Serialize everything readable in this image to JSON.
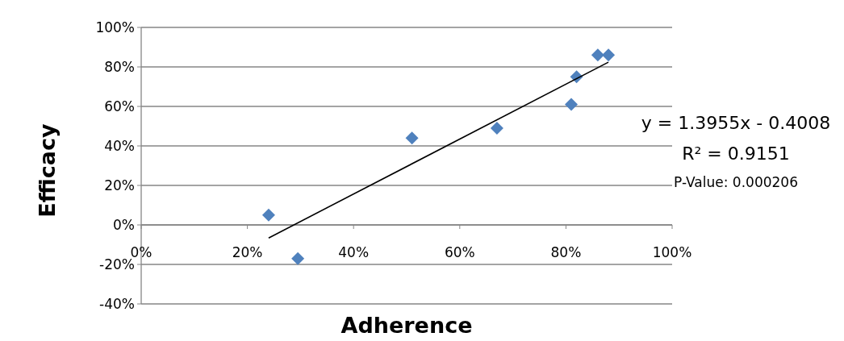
{
  "chart_data": {
    "type": "scatter",
    "xlabel": "Adherence",
    "ylabel": "Efficacy",
    "x": [
      24,
      29.5,
      51,
      67,
      81,
      82,
      86,
      88
    ],
    "series": [
      {
        "color": "#4f81bd",
        "values": [
          5,
          -17,
          44,
          49,
          61,
          75,
          86,
          86
        ],
        "marker": "diamond"
      },
      {
        "type": "line",
        "color": "#000000",
        "x": [
          24,
          88
        ],
        "values": [
          -6.6,
          82.4
        ],
        "marker": "none"
      }
    ],
    "xlim": [
      0,
      100
    ],
    "xticks": [
      {
        "value": 0,
        "label": "0%"
      },
      {
        "value": 20,
        "label": "20%"
      },
      {
        "value": 40,
        "label": "40%"
      },
      {
        "value": 60,
        "label": "60%"
      },
      {
        "value": 80,
        "label": "80%"
      },
      {
        "value": 100,
        "label": "100%"
      }
    ],
    "ylim": [
      -40,
      100
    ],
    "yticks": [
      {
        "value": -40,
        "label": "-40%"
      },
      {
        "value": -20,
        "label": "-20%"
      },
      {
        "value": 0,
        "label": "0%"
      },
      {
        "value": 20,
        "label": "20%"
      },
      {
        "value": 40,
        "label": "40%"
      },
      {
        "value": 60,
        "label": "60%"
      },
      {
        "value": 80,
        "label": "80%"
      },
      {
        "value": 100,
        "label": "100%"
      }
    ],
    "grid": "y",
    "annotations": [
      "y = 1.3955x - 0.4008",
      "R² = 0.9151",
      "P-Value: 0.000206"
    ]
  }
}
